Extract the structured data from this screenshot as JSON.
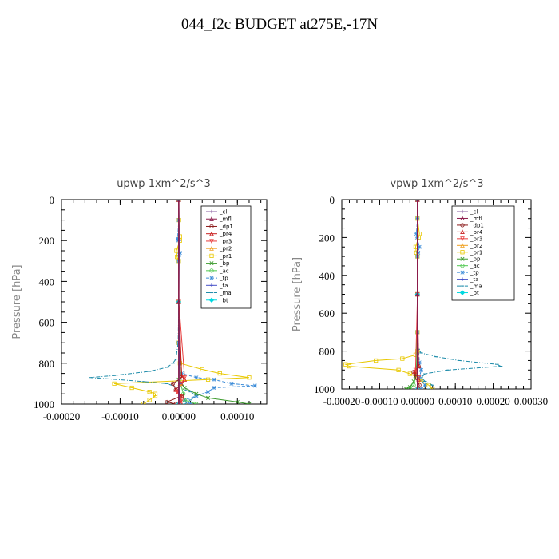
{
  "title": "044_f2c  BUDGET at275E,-17N",
  "legend": [
    "_cl",
    "_mfl",
    "_dp1",
    "_pr4",
    "_pr3",
    "_pr2",
    "_pr1",
    "_bp",
    "_ac",
    "_tp",
    "_ta",
    "_ma",
    "_bt"
  ],
  "colors": {
    "_cl": "#8a5fa0",
    "_mfl": "#8b1a4a",
    "_dp1": "#8b1a1a",
    "_pr4": "#c81e1e",
    "_pr3": "#e83c3c",
    "_pr2": "#f0a020",
    "_pr1": "#e8c800",
    "_bp": "#3c9a2c",
    "_ac": "#50c850",
    "_tp": "#3c8cd8",
    "_ta": "#4650c8",
    "_ma": "#1e8caa",
    "_bt": "#00d8e0"
  },
  "chart_data": [
    {
      "type": "line",
      "title": "upwp   1xm^2/s^3",
      "xlabel": "",
      "ylabel": "Pressure [hPa]",
      "xlim": [
        -0.0002,
        0.00015
      ],
      "ylim": [
        1000,
        0
      ],
      "xticks": [
        "-0.00020",
        "-0.00010",
        "0.00000",
        "0.00010"
      ],
      "xtick_values": [
        -0.0002,
        -0.0001,
        0,
        0.0001
      ],
      "yticks": [
        "0",
        "200",
        "400",
        "600",
        "800",
        "1000"
      ],
      "ytick_values": [
        0,
        200,
        400,
        600,
        800,
        1000
      ],
      "legend_position": "top-right",
      "grid": false,
      "series": [
        {
          "name": "_pr1",
          "p": [
            0,
            100,
            180,
            200,
            250,
            280,
            300,
            500,
            700,
            800,
            830,
            850,
            870,
            880,
            900,
            920,
            940,
            950,
            960,
            980,
            1000
          ],
          "values": [
            0,
            3e-07,
            2e-06,
            2e-06,
            -4e-06,
            -3e-06,
            0,
            0,
            0,
            2e-06,
            4e-05,
            7e-05,
            0.00012,
            5e-05,
            -0.00011,
            -8e-05,
            -5e-05,
            -4e-05,
            -4e-05,
            -5e-05,
            -6e-05
          ]
        },
        {
          "name": "_ma",
          "p": [
            0,
            100,
            300,
            500,
            700,
            780,
            800,
            820,
            840,
            860,
            870,
            890,
            900,
            920,
            940,
            960,
            980,
            1000
          ],
          "values": [
            0,
            0,
            0,
            0,
            -1e-06,
            -5e-06,
            -1e-05,
            -2e-05,
            -5e-05,
            -0.00011,
            -0.00015,
            -6e-05,
            -2e-05,
            0,
            2e-05,
            3e-05,
            2e-05,
            1e-05
          ]
        },
        {
          "name": "_tp",
          "p": [
            0,
            100,
            190,
            200,
            260,
            270,
            300,
            500,
            700,
            850,
            870,
            880,
            900,
            910,
            920,
            940,
            960,
            980,
            1000
          ],
          "values": [
            0,
            0,
            -2e-06,
            -1e-06,
            2e-06,
            1e-06,
            0,
            0,
            0,
            5e-06,
            3e-05,
            6e-05,
            9e-05,
            0.00013,
            6e-05,
            5e-05,
            3e-05,
            1e-05,
            2e-05
          ]
        },
        {
          "name": "_bp",
          "p": [
            0,
            500,
            880,
            900,
            920,
            950,
            970,
            990,
            1000
          ],
          "values": [
            0,
            0,
            0,
            5e-06,
            1e-05,
            3e-05,
            5e-05,
            0.0001,
            0.00012
          ]
        },
        {
          "name": "_ac",
          "p": [
            0,
            500,
            900,
            950,
            980,
            1000
          ],
          "values": [
            0,
            0,
            3e-06,
            8e-06,
            1e-05,
            3e-05
          ]
        },
        {
          "name": "_dp1",
          "p": [
            0,
            500,
            870,
            900,
            930,
            960,
            990,
            1000
          ],
          "values": [
            0,
            0,
            5e-06,
            -1e-05,
            -5e-06,
            5e-06,
            -2e-05,
            -5e-06
          ]
        },
        {
          "name": "_pr4",
          "p": [
            0,
            500,
            860,
            880,
            900,
            930,
            960,
            1000
          ],
          "values": [
            0,
            0,
            5e-06,
            1e-05,
            3e-06,
            -5e-06,
            5e-06,
            3e-06
          ]
        },
        {
          "name": "_pr3",
          "p": [
            0,
            500,
            870,
            900,
            940,
            980,
            1000
          ],
          "values": [
            0,
            0,
            1e-05,
            5e-06,
            -3e-06,
            5e-06,
            3e-06
          ]
        },
        {
          "name": "_pr2",
          "p": [
            0,
            500,
            900,
            1000
          ],
          "values": [
            0,
            0,
            2e-06,
            1e-06
          ]
        },
        {
          "name": "_ta",
          "p": [
            0,
            200,
            500,
            900,
            1000
          ],
          "values": [
            0,
            1e-06,
            0,
            2e-06,
            1e-06
          ]
        },
        {
          "name": "_cl",
          "p": [
            0,
            500,
            1000
          ],
          "values": [
            0,
            0,
            0
          ]
        },
        {
          "name": "_bt",
          "p": [
            0,
            500,
            1000
          ],
          "values": [
            0,
            0,
            0
          ]
        },
        {
          "name": "_mfl",
          "p": [
            0,
            500,
            1000
          ],
          "values": [
            0,
            0,
            0
          ]
        }
      ]
    },
    {
      "type": "line",
      "title": "vpwp   1xm^2/s^3",
      "xlabel": "",
      "ylabel": "Pressure [hPa]",
      "xlim": [
        -0.0002,
        0.0003
      ],
      "ylim": [
        1000,
        0
      ],
      "xticks": [
        "-0.00020",
        "-0.00010",
        "0.00000",
        "0.00010",
        "0.00020",
        "0.00030"
      ],
      "xtick_values": [
        -0.0002,
        -0.0001,
        0,
        0.0001,
        0.0002,
        0.0003
      ],
      "yticks": [
        "0",
        "200",
        "400",
        "600",
        "800",
        "1000"
      ],
      "ytick_values": [
        0,
        200,
        400,
        600,
        800,
        1000
      ],
      "legend_position": "top-right",
      "grid": false,
      "series": [
        {
          "name": "_pr1",
          "p": [
            0,
            100,
            180,
            200,
            250,
            280,
            300,
            500,
            700,
            800,
            820,
            840,
            850,
            870,
            880,
            900,
            920,
            940,
            960,
            980,
            1000
          ],
          "values": [
            0,
            0,
            5e-06,
            3e-06,
            -5e-06,
            -3e-06,
            0,
            0,
            0,
            0,
            -5e-06,
            -4e-05,
            -0.00011,
            -0.00019,
            -0.00018,
            -5e-05,
            -2e-05,
            0,
            1e-05,
            3e-05,
            4e-05
          ]
        },
        {
          "name": "_ma",
          "p": [
            0,
            100,
            300,
            500,
            700,
            790,
            810,
            830,
            850,
            870,
            880,
            900,
            920,
            940,
            960,
            980,
            1000
          ],
          "values": [
            0,
            0,
            0,
            0,
            0,
            2e-06,
            1e-05,
            5e-05,
            0.00011,
            0.00021,
            0.00022,
            8e-05,
            2e-05,
            1e-05,
            2e-05,
            4e-05,
            3e-05
          ]
        },
        {
          "name": "_tp",
          "p": [
            0,
            100,
            180,
            200,
            250,
            280,
            300,
            500,
            700,
            860,
            900,
            940,
            980,
            1000
          ],
          "values": [
            0,
            0,
            -3e-06,
            -1e-06,
            5e-06,
            2e-06,
            0,
            0,
            0,
            5e-06,
            1e-05,
            5e-06,
            2e-05,
            1e-05
          ]
        },
        {
          "name": "_bp",
          "p": [
            0,
            500,
            880,
            920,
            960,
            990,
            1000
          ],
          "values": [
            0,
            0,
            0,
            -5e-06,
            -1e-05,
            -2e-05,
            -3e-05
          ]
        },
        {
          "name": "_ac",
          "p": [
            0,
            500,
            920,
            980,
            1000
          ],
          "values": [
            0,
            0,
            -3e-06,
            -1e-05,
            -2e-05
          ]
        },
        {
          "name": "_dp1",
          "p": [
            0,
            500,
            880,
            910,
            940,
            980,
            1000
          ],
          "values": [
            0,
            0,
            3e-06,
            -1e-05,
            -5e-06,
            5e-06,
            2e-06
          ]
        },
        {
          "name": "_pr4",
          "p": [
            0,
            500,
            880,
            910,
            950,
            1000
          ],
          "values": [
            0,
            0,
            3e-06,
            -8e-06,
            3e-06,
            1e-06
          ]
        },
        {
          "name": "_pr3",
          "p": [
            0,
            500,
            900,
            940,
            1000
          ],
          "values": [
            0,
            0,
            -5e-06,
            3e-06,
            0
          ]
        },
        {
          "name": "_pr2",
          "p": [
            0,
            500,
            1000
          ],
          "values": [
            0,
            0,
            0
          ]
        },
        {
          "name": "_ta",
          "p": [
            0,
            500,
            1000
          ],
          "values": [
            0,
            0,
            0
          ]
        },
        {
          "name": "_cl",
          "p": [
            0,
            500,
            1000
          ],
          "values": [
            0,
            0,
            0
          ]
        },
        {
          "name": "_bt",
          "p": [
            0,
            500,
            1000
          ],
          "values": [
            0,
            0,
            0
          ]
        },
        {
          "name": "_mfl",
          "p": [
            0,
            500,
            1000
          ],
          "values": [
            0,
            0,
            0
          ]
        }
      ]
    }
  ]
}
